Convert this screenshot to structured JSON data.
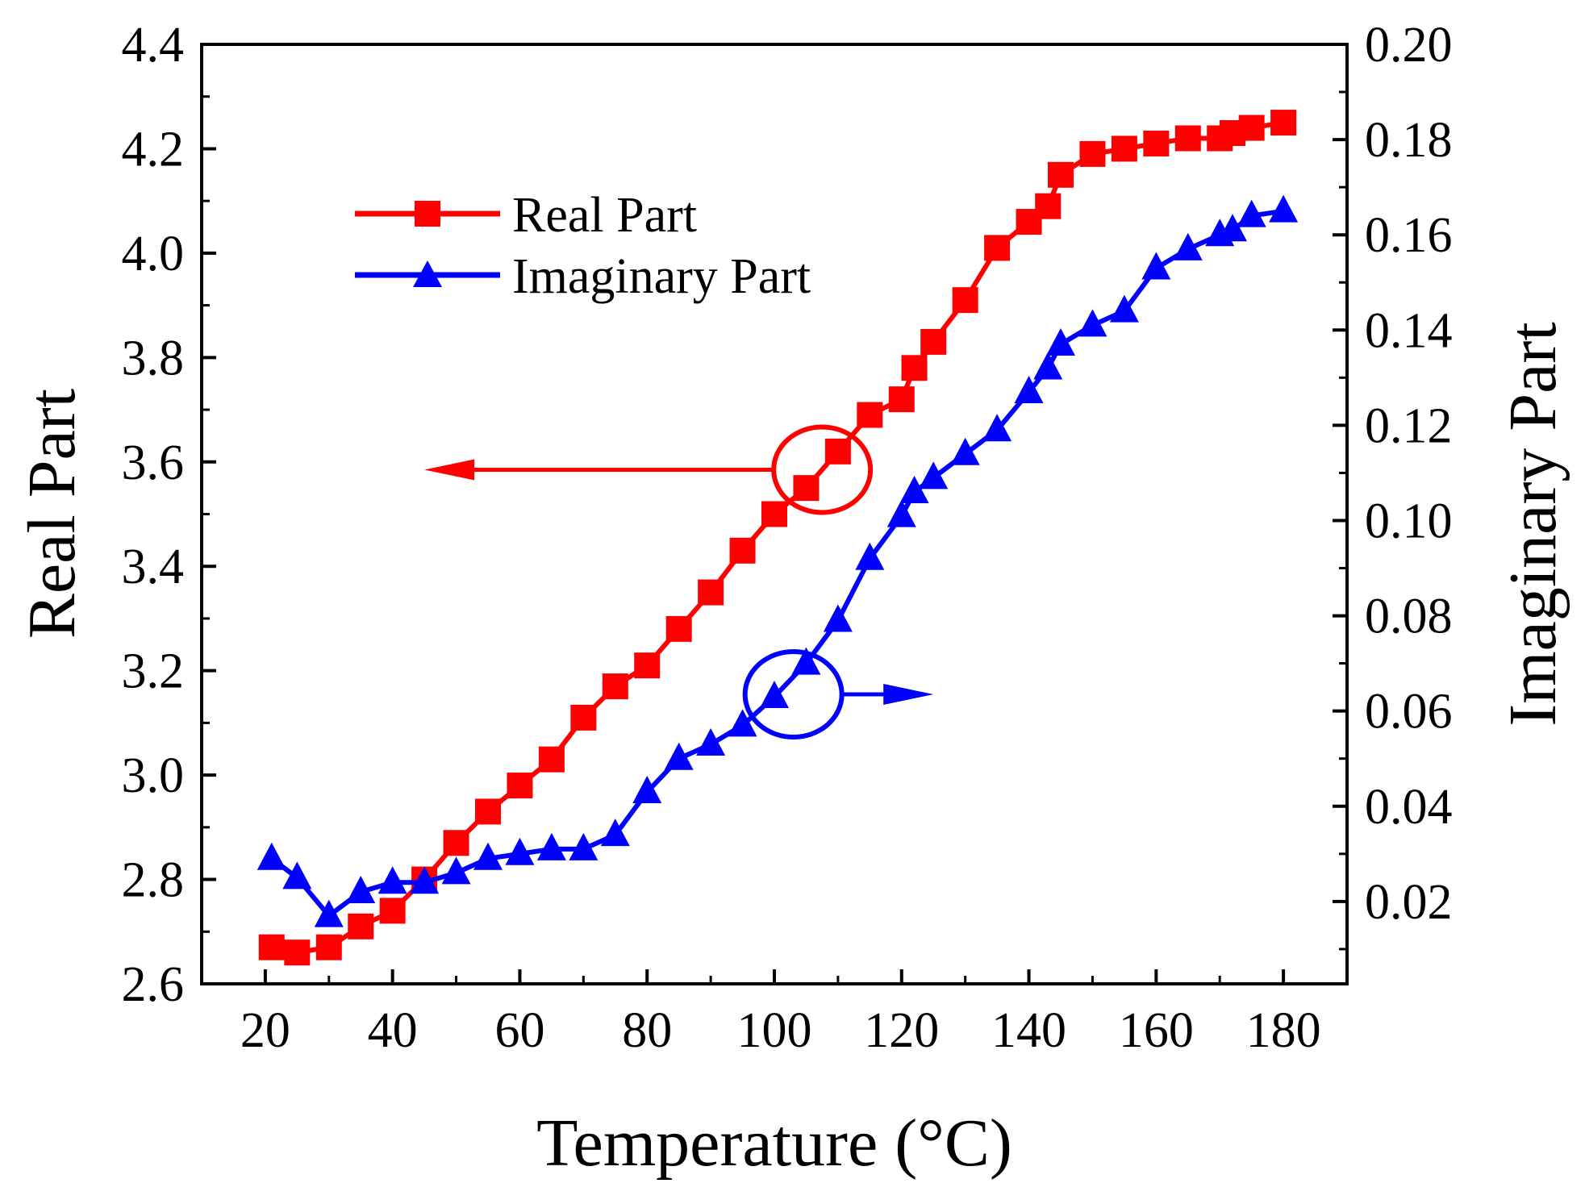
{
  "chart_data": {
    "type": "line",
    "title": "",
    "xlabel": "Temperature (°C)",
    "ylabel": "Real Part",
    "y2label": "Imaginary Part",
    "xlim": [
      10,
      190
    ],
    "ylim": [
      2.6,
      4.4
    ],
    "y2lim": [
      0.0027,
      0.2
    ],
    "x_ticks": [
      "20",
      "40",
      "60",
      "80",
      "100",
      "120",
      "140",
      "160",
      "180"
    ],
    "y_ticks": [
      "2.6",
      "2.8",
      "3.0",
      "3.2",
      "3.4",
      "3.6",
      "3.8",
      "4.0",
      "4.2",
      "4.4"
    ],
    "y2_ticks": [
      "0.02",
      "0.04",
      "0.06",
      "0.08",
      "0.10",
      "0.12",
      "0.14",
      "0.16",
      "0.18",
      "0.20"
    ],
    "series": [
      {
        "name": "Real Part",
        "axis": "left",
        "color": "#ff0000",
        "marker": "square",
        "x": [
          21,
          25,
          30,
          35,
          40,
          45,
          50,
          55,
          60,
          65,
          70,
          75,
          80,
          85,
          90,
          95,
          100,
          105,
          110,
          115,
          120,
          122,
          125,
          130,
          135,
          140,
          143,
          145,
          150,
          155,
          160,
          165,
          170,
          172,
          175,
          180
        ],
        "values": [
          2.67,
          2.66,
          2.67,
          2.71,
          2.74,
          2.8,
          2.87,
          2.93,
          2.98,
          3.03,
          3.11,
          3.17,
          3.21,
          3.28,
          3.35,
          3.43,
          3.5,
          3.55,
          3.62,
          3.69,
          3.72,
          3.78,
          3.83,
          3.91,
          4.01,
          4.06,
          4.09,
          4.15,
          4.19,
          4.2,
          4.21,
          4.22,
          4.22,
          4.23,
          4.24,
          4.25
        ]
      },
      {
        "name": "Imaginary Part",
        "axis": "right",
        "color": "#0000ff",
        "marker": "triangle",
        "x": [
          21,
          25,
          30,
          35,
          40,
          45,
          50,
          55,
          60,
          65,
          70,
          75,
          80,
          85,
          90,
          95,
          100,
          105,
          110,
          115,
          120,
          122,
          125,
          130,
          135,
          140,
          143,
          145,
          150,
          155,
          160,
          165,
          170,
          172,
          175,
          180
        ],
        "values": [
          0.029,
          0.025,
          0.017,
          0.022,
          0.024,
          0.024,
          0.026,
          0.029,
          0.03,
          0.031,
          0.031,
          0.034,
          0.043,
          0.05,
          0.053,
          0.057,
          0.063,
          0.07,
          0.079,
          0.092,
          0.101,
          0.106,
          0.109,
          0.114,
          0.119,
          0.127,
          0.132,
          0.137,
          0.141,
          0.144,
          0.153,
          0.157,
          0.16,
          0.161,
          0.164,
          0.165
        ]
      }
    ],
    "annotations": [
      {
        "type": "ellipse-arrow",
        "series": "Real Part",
        "center": [
          107.5,
          3.585
        ],
        "arrow": "left",
        "arrow_to_x": 45
      },
      {
        "type": "ellipse-arrow",
        "series": "Imaginary Part",
        "center": [
          103,
          0.0635
        ],
        "arrow": "right",
        "arrow_to_x": 125
      }
    ],
    "legend": {
      "position": "top-left",
      "entries": [
        "Real Part",
        "Imaginary Part"
      ]
    }
  }
}
